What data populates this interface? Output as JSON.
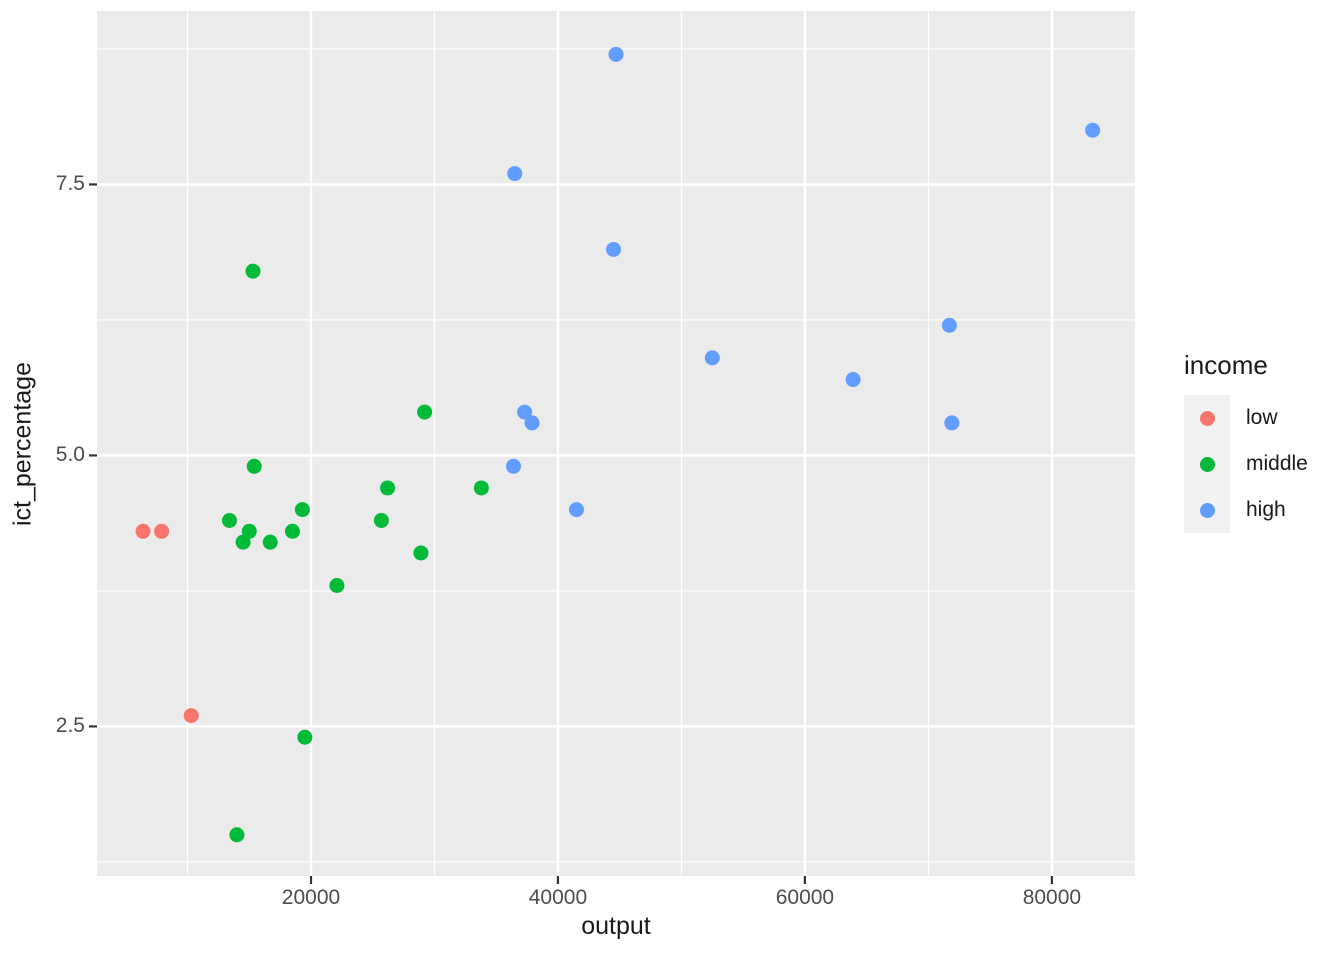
{
  "chart_data": {
    "type": "scatter",
    "title": "",
    "xlabel": "output",
    "ylabel": "ict_percentage",
    "panel_background": "#EBEBEB",
    "grid": "white major and minor gridlines on gray panel",
    "x_axis": {
      "range": [
        2670,
        86730
      ],
      "ticks": [
        {
          "value": 20000,
          "label": "20000"
        },
        {
          "value": 40000,
          "label": "40000"
        },
        {
          "value": 60000,
          "label": "60000"
        },
        {
          "value": 80000,
          "label": "80000"
        }
      ],
      "minor": [
        10000,
        30000,
        50000,
        70000
      ]
    },
    "y_axis": {
      "range": [
        1.12,
        9.1
      ],
      "ticks": [
        {
          "value": 2.5,
          "label": "2.5"
        },
        {
          "value": 5.0,
          "label": "5.0"
        },
        {
          "value": 7.5,
          "label": "7.5"
        }
      ],
      "minor": [
        1.25,
        3.75,
        6.25,
        8.75
      ]
    },
    "legend": {
      "title": "income",
      "position": "right",
      "entries": [
        {
          "label": "low",
          "color": "#F8766D"
        },
        {
          "label": "middle",
          "color": "#00BA38"
        },
        {
          "label": "high",
          "color": "#619CFF"
        }
      ]
    },
    "series": [
      {
        "name": "low",
        "color": "#F8766D",
        "points": [
          [
            6400,
            4.3
          ],
          [
            7900,
            4.3
          ],
          [
            10300,
            2.6
          ]
        ]
      },
      {
        "name": "middle",
        "color": "#00BA38",
        "points": [
          [
            13400,
            4.4
          ],
          [
            14000,
            1.5
          ],
          [
            14500,
            4.2
          ],
          [
            15000,
            4.3
          ],
          [
            15300,
            6.7
          ],
          [
            15400,
            4.9
          ],
          [
            16700,
            4.2
          ],
          [
            18500,
            4.3
          ],
          [
            19300,
            4.5
          ],
          [
            19500,
            2.4
          ],
          [
            22100,
            3.8
          ],
          [
            25700,
            4.4
          ],
          [
            26200,
            4.7
          ],
          [
            28900,
            4.1
          ],
          [
            29200,
            5.4
          ],
          [
            33800,
            4.7
          ]
        ]
      },
      {
        "name": "high",
        "color": "#619CFF",
        "points": [
          [
            36400,
            4.9
          ],
          [
            36500,
            7.6
          ],
          [
            37300,
            5.4
          ],
          [
            37900,
            5.3
          ],
          [
            41500,
            4.5
          ],
          [
            44500,
            6.9
          ],
          [
            44700,
            8.7
          ],
          [
            52500,
            5.9
          ],
          [
            63900,
            5.7
          ],
          [
            71700,
            6.2
          ],
          [
            71900,
            5.3
          ],
          [
            83300,
            8.0
          ]
        ]
      }
    ]
  }
}
